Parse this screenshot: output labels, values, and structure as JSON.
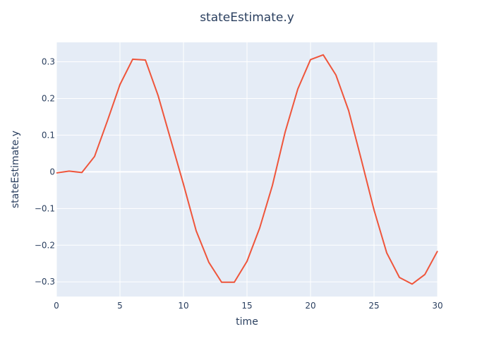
{
  "chart_data": {
    "type": "line",
    "title": "stateEstimate.y",
    "xlabel": "time",
    "ylabel": "stateEstimate.y",
    "xlim": [
      0,
      30
    ],
    "ylim": [
      -0.34,
      0.353
    ],
    "xticks": [
      0,
      5,
      10,
      15,
      20,
      25,
      30
    ],
    "xtick_labels": [
      "0",
      "5",
      "10",
      "15",
      "20",
      "25",
      "30"
    ],
    "yticks": [
      0.3,
      0.2,
      0.1,
      0,
      -0.1,
      -0.2,
      -0.3
    ],
    "ytick_labels": [
      "0.3",
      "0.2",
      "0.1",
      "0",
      "−0.1",
      "−0.2",
      "−0.3"
    ],
    "grid": true,
    "colors": {
      "line": "#ef553b",
      "plot_bg": "#e5ecf6",
      "grid": "#ffffff",
      "text": "#2a3f5f"
    },
    "series": [
      {
        "x": [
          0,
          1,
          2,
          3,
          4,
          5,
          6,
          7,
          8,
          9,
          10,
          11,
          12,
          13,
          14,
          15,
          16,
          17,
          18,
          19,
          20,
          21,
          22,
          23,
          24,
          25,
          26,
          27,
          28,
          29,
          30
        ],
        "y": [
          -0.003,
          0.002,
          -0.002,
          0.042,
          0.138,
          0.238,
          0.307,
          0.305,
          0.208,
          0.087,
          -0.034,
          -0.161,
          -0.247,
          -0.301,
          -0.301,
          -0.244,
          -0.153,
          -0.037,
          0.108,
          0.226,
          0.306,
          0.319,
          0.264,
          0.167,
          0.033,
          -0.104,
          -0.221,
          -0.288,
          -0.306,
          -0.28,
          -0.216
        ]
      }
    ]
  }
}
